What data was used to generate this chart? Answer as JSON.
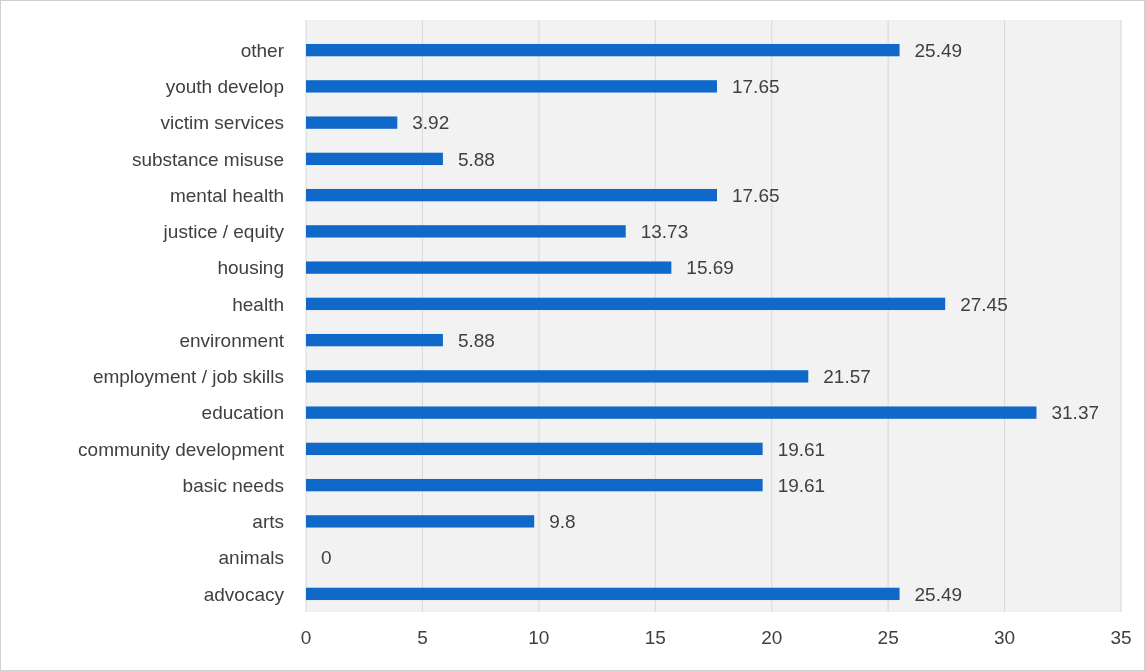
{
  "chart_data": {
    "type": "bar",
    "orientation": "horizontal",
    "categories": [
      "other",
      "youth develop",
      "victim services",
      "substance misuse",
      "mental health",
      "justice / equity",
      "housing",
      "health",
      "environment",
      "employment / job skills",
      "education",
      "community development",
      "basic needs",
      "arts",
      "animals",
      "advocacy"
    ],
    "values": [
      25.49,
      17.65,
      3.92,
      5.88,
      17.65,
      13.73,
      15.69,
      27.45,
      5.88,
      21.57,
      31.37,
      19.61,
      19.61,
      9.8,
      0,
      25.49
    ],
    "color": "#1068c8",
    "xlim": [
      0,
      35
    ],
    "xticks": [
      0,
      5,
      10,
      15,
      20,
      25,
      30,
      35
    ],
    "grid": "x",
    "data_labels": true
  }
}
